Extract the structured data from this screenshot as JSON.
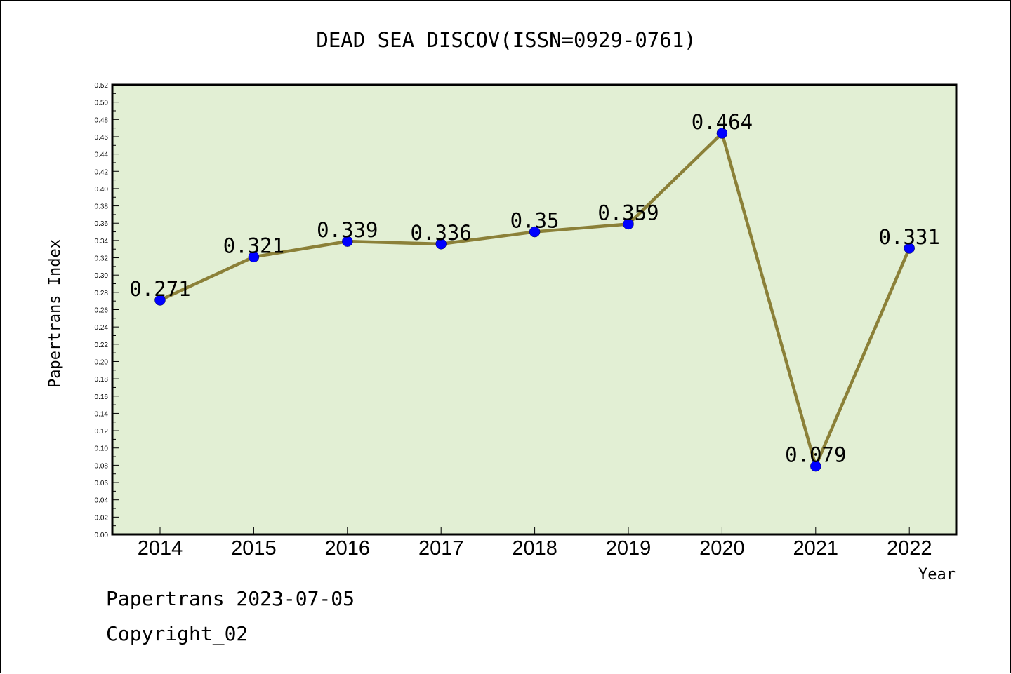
{
  "footer": {
    "date_line": "Papertrans 2023-07-05",
    "copyright_line": "Copyright_02"
  },
  "colors": {
    "plot_background": "#e2efd4",
    "line": "#8b8038",
    "marker": "#0000ff"
  },
  "chart_data": {
    "type": "line",
    "title": "DEAD SEA DISCOV(ISSN=0929-0761)",
    "xlabel": "Year",
    "ylabel": "Papertrans Index",
    "categories": [
      "2014",
      "2015",
      "2016",
      "2017",
      "2018",
      "2019",
      "2020",
      "2021",
      "2022"
    ],
    "series": [
      {
        "values": [
          0.271,
          0.321,
          0.339,
          0.336,
          0.35,
          0.359,
          0.464,
          0.079,
          0.331
        ],
        "labels": [
          "0.271",
          "0.321",
          "0.339",
          "0.336",
          "0.35",
          "0.359",
          "0.464",
          "0.079",
          "0.331"
        ]
      }
    ],
    "ylim": [
      0,
      0.52
    ],
    "yticks": [
      "0.00",
      "0.02",
      "0.04",
      "0.06",
      "0.08",
      "0.10",
      "0.12",
      "0.14",
      "0.16",
      "0.18",
      "0.20",
      "0.22",
      "0.24",
      "0.26",
      "0.28",
      "0.30",
      "0.32",
      "0.34",
      "0.36",
      "0.38",
      "0.40",
      "0.42",
      "0.44",
      "0.46",
      "0.48",
      "0.50",
      "0.52"
    ],
    "grid": false,
    "legend": "none"
  }
}
